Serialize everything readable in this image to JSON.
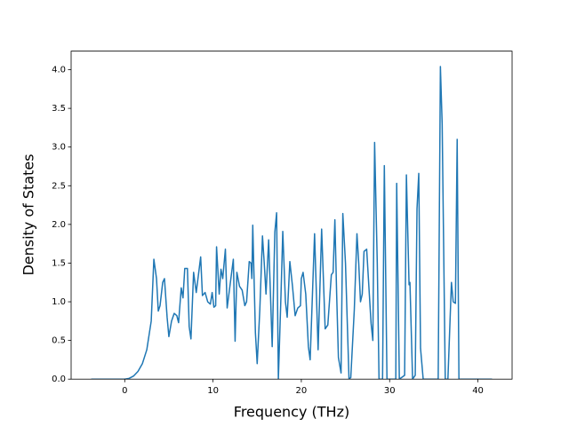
{
  "chart_data": {
    "type": "line",
    "xlabel": "Frequency (THz)",
    "ylabel": "Density of States",
    "series": [
      {
        "color": "#1f77b4",
        "x": [
          -3.8,
          0,
          0.5,
          1,
          1.5,
          2,
          2.5,
          3,
          3.3,
          3.6,
          3.8,
          4,
          4.3,
          4.5,
          4.8,
          5,
          5.3,
          5.6,
          5.9,
          6.1,
          6.4,
          6.6,
          6.8,
          7.1,
          7.3,
          7.5,
          7.8,
          8.1,
          8.6,
          8.8,
          9.1,
          9.4,
          9.7,
          9.9,
          10.1,
          10.3,
          10.4,
          10.7,
          10.9,
          11.1,
          11.4,
          11.6,
          11.8,
          12.3,
          12.5,
          12.7,
          13,
          13.3,
          13.6,
          13.8,
          14.1,
          14.3,
          14.4,
          14.5,
          14.8,
          15,
          15.3,
          15.6,
          15.8,
          16,
          16.3,
          16.7,
          17,
          17.2,
          17.4,
          17.7,
          17.9,
          18.2,
          18.4,
          18.7,
          19,
          19.3,
          19.6,
          19.9,
          20,
          20.2,
          20.5,
          20.8,
          21,
          21.5,
          21.9,
          22.3,
          22.7,
          23,
          23.4,
          23.6,
          23.8,
          24,
          24.2,
          24.5,
          24.7,
          25,
          25.4,
          25.6,
          26,
          26.3,
          26.5,
          26.7,
          26.9,
          27.1,
          27.4,
          27.7,
          27.9,
          28.1,
          28.3,
          28.6,
          28.8,
          29.2,
          29.4,
          29.7,
          30.7,
          30.8,
          31.1,
          31.7,
          31.9,
          32.2,
          32.3,
          32.6,
          32.9,
          33.1,
          33.3,
          33.5,
          33.8,
          35.5,
          35.75,
          35.95,
          36.3,
          36.6,
          37,
          37.2,
          37.45,
          37.65,
          37.85,
          41.6
        ],
        "values": [
          0,
          0,
          0.01,
          0.04,
          0.1,
          0.2,
          0.38,
          0.75,
          1.55,
          1.3,
          0.88,
          0.95,
          1.25,
          1.3,
          0.8,
          0.55,
          0.75,
          0.85,
          0.82,
          0.73,
          1.18,
          1.05,
          1.43,
          1.43,
          0.68,
          0.52,
          1.38,
          1.12,
          1.58,
          1.08,
          1.12,
          1,
          0.97,
          1.12,
          0.93,
          0.95,
          1.71,
          1.1,
          1.42,
          1.3,
          1.68,
          0.92,
          1.1,
          1.55,
          0.49,
          1.38,
          1.2,
          1.15,
          0.95,
          1,
          1.52,
          1.5,
          1.3,
          1.99,
          0.6,
          0.2,
          0.9,
          1.85,
          1.5,
          1.1,
          1.8,
          0.42,
          1.9,
          2.15,
          0,
          1.1,
          1.91,
          1,
          0.8,
          1.52,
          1.2,
          0.82,
          0.92,
          0.95,
          1.3,
          1.38,
          1.1,
          0.42,
          0.25,
          1.88,
          0.38,
          1.94,
          0.65,
          0.7,
          1.35,
          1.38,
          2.06,
          1.1,
          0.28,
          0.08,
          2.14,
          1.5,
          0,
          0.02,
          0.9,
          1.88,
          1.5,
          1,
          1.1,
          1.65,
          1.68,
          1.1,
          0.72,
          0.5,
          3.06,
          1.5,
          0,
          0,
          2.76,
          0,
          0,
          2.53,
          0,
          0.05,
          2.64,
          1.22,
          1.25,
          0,
          0.05,
          2.2,
          2.66,
          0.4,
          0,
          0,
          4.04,
          3.3,
          0,
          0,
          1.25,
          1,
          0.98,
          3.1,
          0,
          0
        ]
      }
    ],
    "xlim": [
      -6.07,
      43.87
    ],
    "ylim": [
      0,
      4.24
    ],
    "xticks": [
      0,
      10,
      20,
      30,
      40
    ],
    "yticks": [
      {
        "value": 0,
        "label": "0.0"
      },
      0.5,
      {
        "value": 1,
        "label": "1.0"
      },
      1.5,
      {
        "value": 2,
        "label": "2.0"
      },
      2.5,
      {
        "value": 3,
        "label": "3.0"
      },
      3.5,
      {
        "value": 4,
        "label": "4.0"
      }
    ]
  }
}
